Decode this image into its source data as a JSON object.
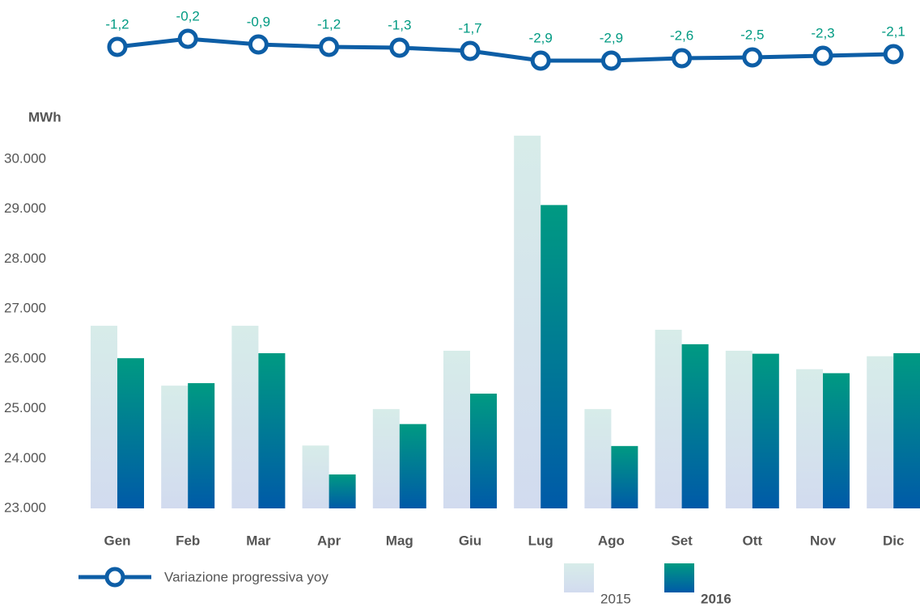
{
  "chart_data": {
    "type": "bar",
    "y_label": "MWh",
    "categories": [
      "Gen",
      "Feb",
      "Mar",
      "Apr",
      "Mag",
      "Giu",
      "Lug",
      "Ago",
      "Set",
      "Ott",
      "Nov",
      "Dic"
    ],
    "series": [
      {
        "name": "2015",
        "gradient": [
          "#d7ece9",
          "#d2dbef"
        ],
        "values": [
          26660,
          25460,
          26660,
          24260,
          24990,
          26160,
          30470,
          24990,
          26580,
          26160,
          25790,
          26050
        ]
      },
      {
        "name": "2016",
        "gradient": [
          "#009a82",
          "#005aa8"
        ],
        "values": [
          26010,
          25510,
          26110,
          23680,
          24690,
          25300,
          29080,
          24250,
          26290,
          26100,
          25710,
          26110
        ]
      },
      {
        "name": "Variazione progressiva yoy",
        "type": "line",
        "color": "#0d5ea6",
        "label_color": "#009a82",
        "values": [
          -1.2,
          -0.2,
          -0.9,
          -1.2,
          -1.3,
          -1.7,
          -2.9,
          -2.9,
          -2.6,
          -2.5,
          -2.3,
          -2.1
        ],
        "value_labels": [
          "-1,2",
          "-0,2",
          "-0,9",
          "-1,2",
          "-1,3",
          "-1,7",
          "-2,9",
          "-2,9",
          "-2,6",
          "-2,5",
          "-2,3",
          "-2,1"
        ]
      }
    ],
    "ylim": [
      23000,
      30500
    ],
    "yticks": [
      {
        "value": 23000,
        "label": "23.000"
      },
      {
        "value": 24000,
        "label": "24.000"
      },
      {
        "value": 25000,
        "label": "25.000"
      },
      {
        "value": 26000,
        "label": "26.000"
      },
      {
        "value": 27000,
        "label": "27.000"
      },
      {
        "value": 28000,
        "label": "28.000"
      },
      {
        "value": 29000,
        "label": "29.000"
      },
      {
        "value": 30000,
        "label": "30.000"
      }
    ],
    "grid": false
  }
}
